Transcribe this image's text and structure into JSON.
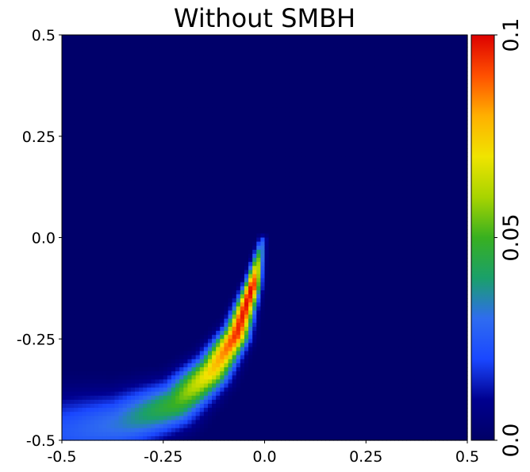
{
  "chart_data": {
    "type": "heatmap",
    "title": "Without SMBH",
    "xlabel": "",
    "ylabel": "",
    "xlim": [
      -0.5,
      0.5
    ],
    "ylim": [
      -0.5,
      0.5
    ],
    "x_ticks": [
      -0.5,
      -0.25,
      0.0,
      0.25,
      0.5
    ],
    "x_tick_labels": [
      "-0.5",
      "-0.25",
      "0.0",
      "0.25",
      "0.5"
    ],
    "y_ticks": [
      -0.5,
      -0.25,
      0.0,
      0.25,
      0.5
    ],
    "y_tick_labels": [
      "-0.5",
      "-0.25",
      "0.0",
      "0.25",
      "0.5"
    ],
    "grid": false,
    "colorbar": {
      "range": [
        0.0,
        0.1
      ],
      "ticks": [
        0.0,
        0.05,
        0.1
      ],
      "tick_labels": [
        "0.0",
        "0.05",
        "0.1"
      ],
      "colormap_stops": [
        "#000066",
        "#00008f",
        "#1a47ff",
        "#2f6cf0",
        "#1aa06a",
        "#38b020",
        "#a8d400",
        "#f0e400",
        "#ffb000",
        "#ff5000",
        "#dd0000"
      ]
    },
    "grid_resolution": 100,
    "background_value": 0.001,
    "ridge": {
      "description_points_data_units": [
        [
          -0.005,
          -0.005
        ],
        [
          -0.03,
          -0.12
        ],
        [
          -0.07,
          -0.24
        ],
        [
          -0.13,
          -0.33
        ],
        [
          -0.22,
          -0.41
        ],
        [
          -0.36,
          -0.46
        ],
        [
          -0.48,
          -0.48
        ]
      ],
      "peak_values": [
        0.022,
        0.1,
        0.095,
        0.075,
        0.05,
        0.032,
        0.025
      ]
    }
  }
}
